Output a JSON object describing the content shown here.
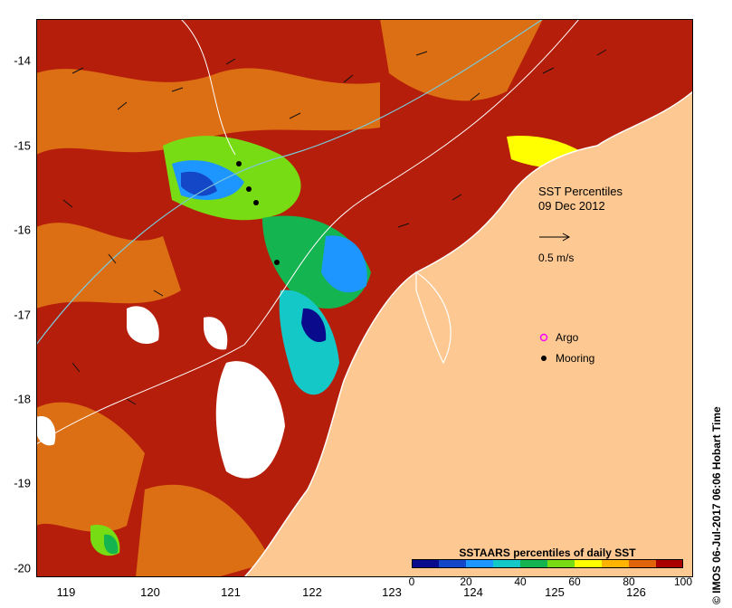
{
  "map": {
    "title_line1": "SST Percentiles",
    "title_line2": "09 Dec 2012",
    "scale_arrow_label": "0.5 m/s",
    "legend": [
      {
        "label": "Argo",
        "color": "#ff00ff",
        "symbol": "ring"
      },
      {
        "label": "Mooring",
        "color": "#000000",
        "symbol": "star"
      }
    ],
    "lat_ticks": [
      "-14",
      "-15",
      "-16",
      "-17",
      "-18",
      "-19",
      "-20"
    ],
    "lon_ticks": [
      "119",
      "120",
      "121",
      "122",
      "123",
      "124",
      "125",
      "126"
    ],
    "colorbar": {
      "title": "SSTAARS percentiles of daily SST",
      "tick_labels": [
        "0",
        "20",
        "40",
        "60",
        "80",
        "100"
      ],
      "colors": [
        "#0a0a8c",
        "#1446c8",
        "#1e96ff",
        "#14c8c8",
        "#14b450",
        "#78dc14",
        "#ffff00",
        "#ffb400",
        "#e1640a",
        "#aa0000"
      ]
    },
    "credit": "© IMOS 06-Jul-2017 06:06 Hobart Time",
    "colors": {
      "land": "#fdc891",
      "ocean_base": "#b41e0a",
      "ocean_warm": "#dc6e14",
      "coastline": "#ffffff",
      "contour": "#7ec8d8"
    }
  }
}
